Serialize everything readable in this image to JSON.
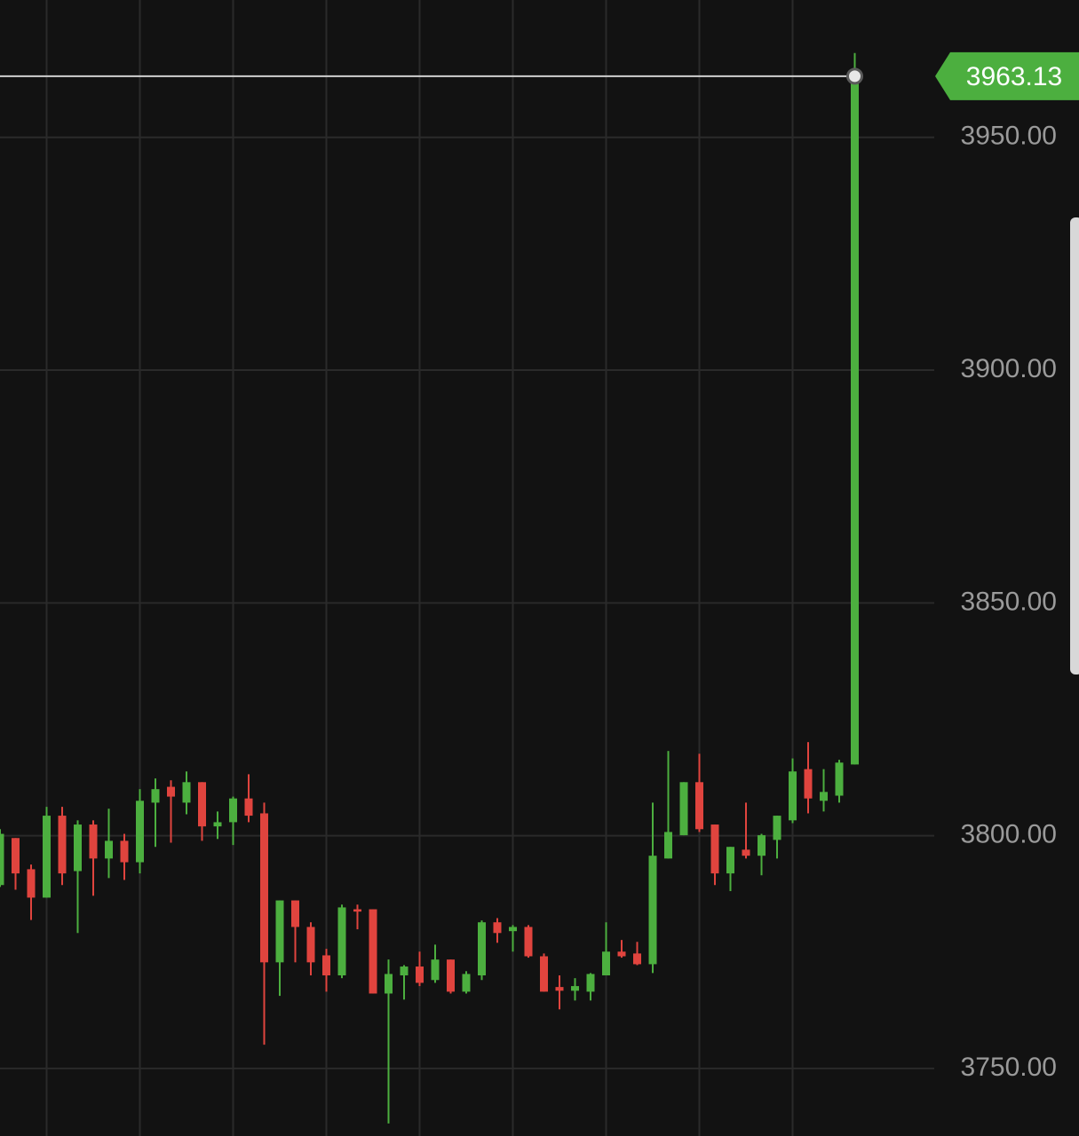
{
  "chart_data": {
    "type": "candlestick",
    "ylim": [
      3735.5,
      3979.5
    ],
    "yticks": [
      {
        "value": 3750,
        "label": "3750.00"
      },
      {
        "value": 3800,
        "label": "3800.00"
      },
      {
        "value": 3850,
        "label": "3850.00"
      },
      {
        "value": 3900,
        "label": "3900.00"
      },
      {
        "value": 3950,
        "label": "3950.00"
      }
    ],
    "grid": true,
    "up_color": "#4caf3f",
    "down_color": "#e0443e",
    "open": [
      3789.4,
      3799.5,
      3792.8,
      3786.7,
      3804.3,
      3792.4,
      3802.4,
      3795.1,
      3798.9,
      3794.3,
      3807.1,
      3810.5,
      3807.1,
      3811.5,
      3802.0,
      3802.9,
      3808.0,
      3804.8,
      3772.8,
      3786.1,
      3780.4,
      3774.3,
      3770.0,
      3784.2,
      3784.2,
      3766.1,
      3770.0,
      3771.9,
      3769.0,
      3773.4,
      3766.5,
      3770.0,
      3781.4,
      3779.5,
      3780.4,
      3774.1,
      3767.5,
      3766.7,
      3766.5,
      3770.0,
      3775.1,
      3774.7,
      3772.4,
      3795.1,
      3800.1,
      3811.5,
      3802.4,
      3791.9,
      3797.0,
      3795.7,
      3799.1,
      3803.3,
      3814.3,
      3807.5,
      3808.6,
      3815.3
    ],
    "high": [
      3801.4,
      3799.5,
      3793.8,
      3806.2,
      3806.2,
      3803.3,
      3803.3,
      3805.8,
      3800.4,
      3810.0,
      3812.3,
      3811.9,
      3813.8,
      3811.5,
      3805.2,
      3808.4,
      3813.2,
      3807.1,
      3786.1,
      3786.1,
      3781.4,
      3775.7,
      3785.2,
      3785.2,
      3784.2,
      3773.4,
      3772.2,
      3775.1,
      3776.6,
      3773.4,
      3770.9,
      3781.8,
      3782.3,
      3780.8,
      3780.8,
      3774.7,
      3770.0,
      3769.4,
      3770.5,
      3781.4,
      3777.6,
      3777.2,
      3807.1,
      3818.2,
      3811.5,
      3817.6,
      3802.4,
      3797.6,
      3807.1,
      3800.4,
      3804.3,
      3816.6,
      3820.1,
      3814.3,
      3816.3,
      3968.1
    ],
    "low": [
      3789.0,
      3788.4,
      3781.9,
      3786.7,
      3789.4,
      3779.1,
      3787.1,
      3790.9,
      3790.5,
      3791.9,
      3797.6,
      3798.5,
      3804.6,
      3798.9,
      3799.3,
      3798.0,
      3802.9,
      3755.1,
      3765.6,
      3772.8,
      3770.0,
      3766.5,
      3769.4,
      3779.9,
      3766.1,
      3738.2,
      3764.8,
      3767.7,
      3768.4,
      3766.1,
      3766.1,
      3769.0,
      3777.0,
      3775.1,
      3773.8,
      3766.5,
      3762.7,
      3764.6,
      3764.6,
      3770.0,
      3773.8,
      3772.2,
      3770.5,
      3795.1,
      3800.1,
      3800.8,
      3789.4,
      3788.1,
      3795.1,
      3791.5,
      3795.1,
      3802.7,
      3804.8,
      3805.2,
      3807.1,
      3815.3
    ],
    "close": [
      3800.4,
      3791.9,
      3786.7,
      3804.3,
      3791.9,
      3802.4,
      3795.1,
      3798.9,
      3794.3,
      3807.5,
      3810.0,
      3808.4,
      3811.5,
      3802.0,
      3802.9,
      3808.0,
      3804.3,
      3772.8,
      3786.1,
      3780.4,
      3772.8,
      3770.0,
      3784.6,
      3783.7,
      3766.1,
      3770.3,
      3771.9,
      3768.4,
      3773.4,
      3766.5,
      3770.3,
      3781.4,
      3779.1,
      3780.4,
      3774.1,
      3766.5,
      3766.7,
      3767.7,
      3770.3,
      3775.1,
      3774.1,
      3772.4,
      3795.7,
      3800.8,
      3811.5,
      3801.4,
      3791.9,
      3797.6,
      3795.7,
      3800.1,
      3804.3,
      3813.8,
      3808.0,
      3809.4,
      3815.7,
      3963.13
    ],
    "last_price": 3963.13
  }
}
